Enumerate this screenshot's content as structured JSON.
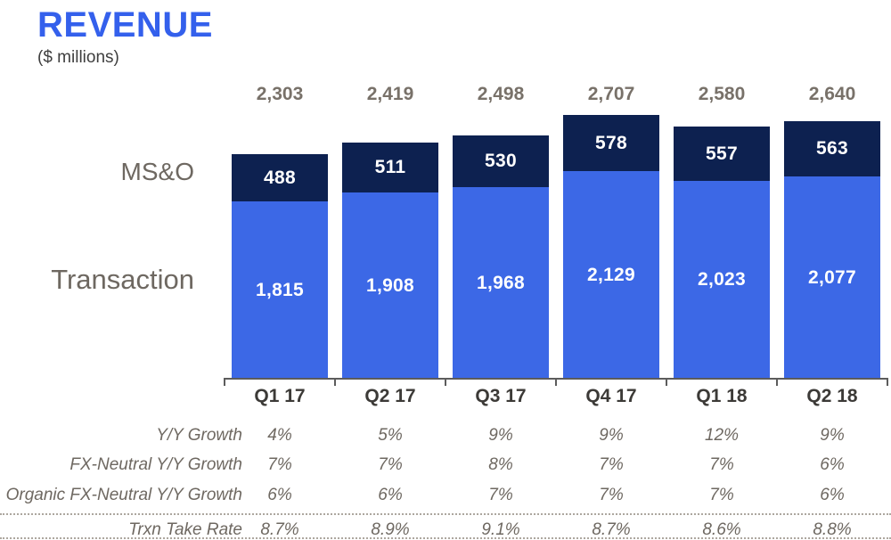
{
  "header": {
    "title": "REVENUE",
    "subtitle": "($ millions)"
  },
  "chart_data": {
    "type": "bar",
    "stacked": true,
    "title": "REVENUE",
    "units": "$ millions",
    "categories": [
      "Q1 17",
      "Q2 17",
      "Q3 17",
      "Q4 17",
      "Q1 18",
      "Q2 18"
    ],
    "series": [
      {
        "name": "MS&O",
        "position": "top",
        "values": [
          488,
          511,
          530,
          578,
          557,
          563
        ]
      },
      {
        "name": "Transaction",
        "position": "bottom",
        "values": [
          1815,
          1908,
          1968,
          2129,
          2023,
          2077
        ]
      }
    ],
    "totals": [
      2303,
      2419,
      2498,
      2707,
      2580,
      2640
    ],
    "ylim": [
      0,
      2707
    ],
    "grid": false,
    "legend_position": "left"
  },
  "legend": {
    "mso_label": "MS&O",
    "transaction_label": "Transaction"
  },
  "table": {
    "rows": [
      {
        "label": "Y/Y Growth",
        "values": [
          "4%",
          "5%",
          "9%",
          "9%",
          "12%",
          "9%"
        ]
      },
      {
        "label": "FX-Neutral Y/Y Growth",
        "values": [
          "7%",
          "7%",
          "8%",
          "7%",
          "7%",
          "6%"
        ]
      },
      {
        "label": "Organic FX-Neutral Y/Y Growth",
        "values": [
          "6%",
          "6%",
          "7%",
          "7%",
          "7%",
          "6%"
        ]
      },
      {
        "label": "Trxn Take Rate",
        "values": [
          "8.7%",
          "8.9%",
          "9.1%",
          "8.7%",
          "8.6%",
          "8.8%"
        ]
      }
    ]
  },
  "colors": {
    "title_blue": "#3460EC",
    "bar_blue": "#3C68E6",
    "bar_navy": "#0D2150",
    "warm_gray_text": "#6E6861",
    "totals_gray": "#787169",
    "category_gray": "#3C3A37"
  }
}
